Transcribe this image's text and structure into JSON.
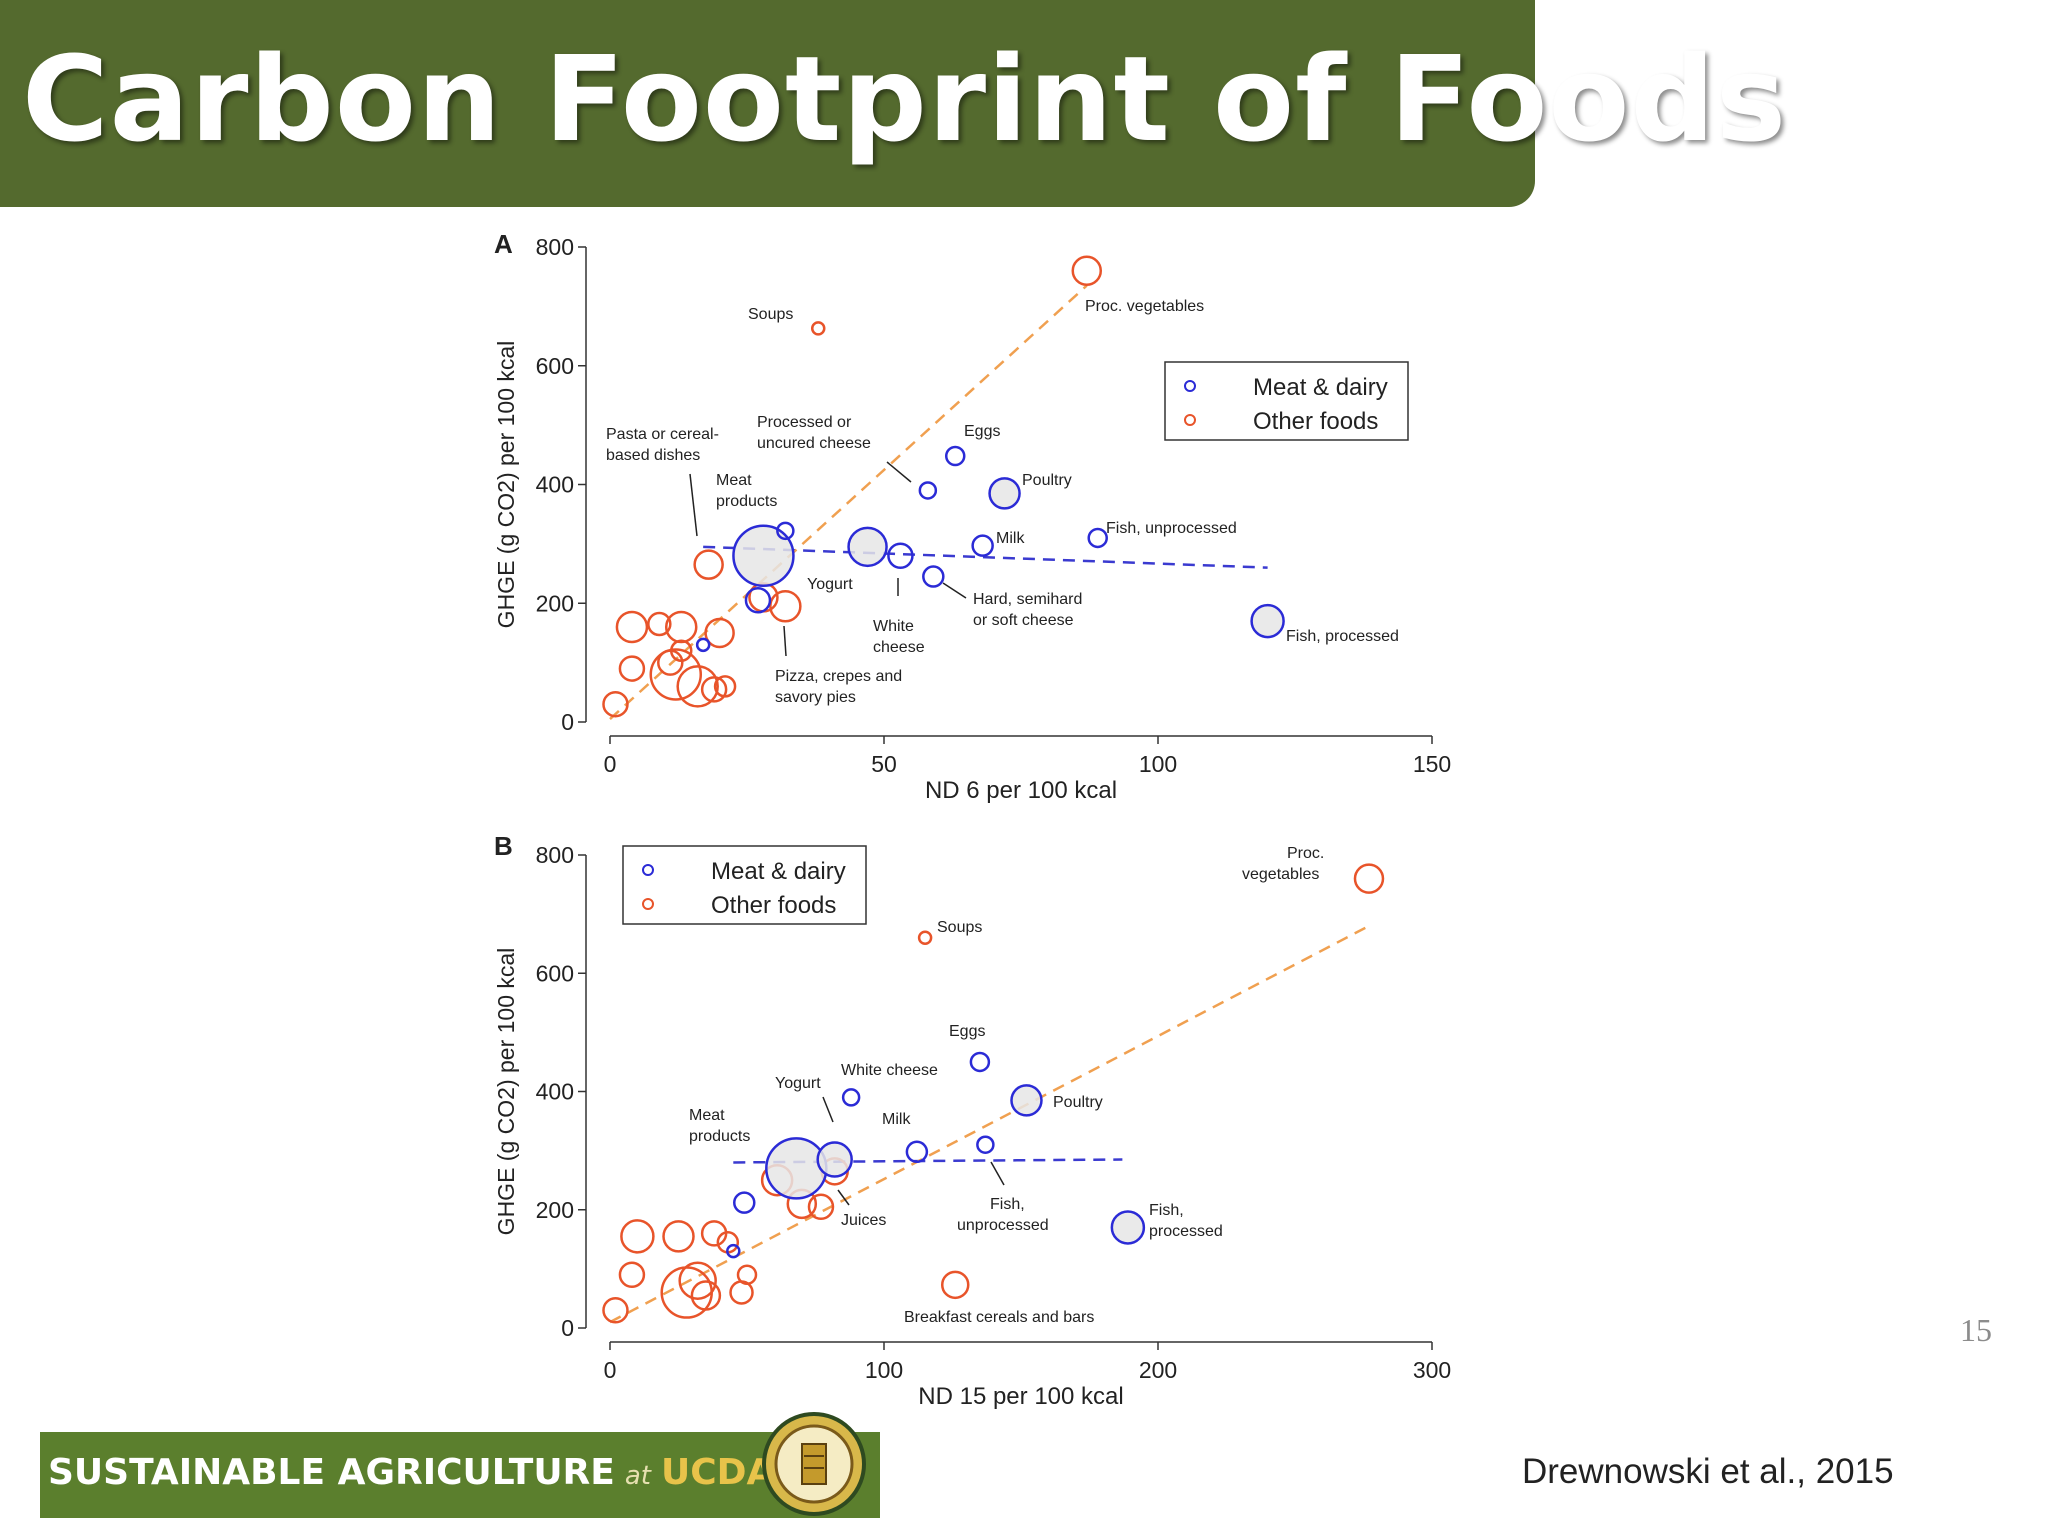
{
  "slide": {
    "title": "Carbon Footprint of Foods",
    "page_number": "15",
    "citation": "Drewnowski et al., 2015",
    "logo": {
      "text_main": "SUSTAINABLE  AGRICULTURE",
      "text_at": "at",
      "text_org": "UCDAVIS"
    }
  },
  "colors": {
    "title_bg": "#546a2e",
    "meat_dairy": "#2b2bd6",
    "other_foods": "#e8542a",
    "fit_meat": "#3a3ad0",
    "fit_other": "#f0a050",
    "bubble_fill": "#e6e6e6"
  },
  "chart_data": [
    {
      "type": "scatter",
      "panel": "A",
      "xlabel": "ND 6 per 100 kcal",
      "ylabel": "GHGE (g CO2) per 100 kcal",
      "xlim": [
        0,
        150
      ],
      "ylim": [
        0,
        800
      ],
      "xticks": [
        0,
        50,
        100,
        150
      ],
      "yticks": [
        0,
        200,
        400,
        600,
        800
      ],
      "legend": {
        "position": "top-right",
        "entries": [
          "Meat & dairy",
          "Other foods"
        ]
      },
      "series": [
        {
          "name": "Meat & dairy",
          "points": [
            {
              "label": "Meat products",
              "x": 28,
              "y": 280,
              "r": 30
            },
            {
              "label": "Yogurt",
              "x": 47,
              "y": 295,
              "r": 19
            },
            {
              "label": "White cheese",
              "x": 53,
              "y": 280,
              "r": 12
            },
            {
              "label": "Hard, semihard or soft cheese",
              "x": 59,
              "y": 245,
              "r": 10
            },
            {
              "label": "Processed or uncured cheese",
              "x": 58,
              "y": 390,
              "r": 8
            },
            {
              "label": "Eggs",
              "x": 63,
              "y": 448,
              "r": 9
            },
            {
              "label": "Poultry",
              "x": 72,
              "y": 385,
              "r": 15
            },
            {
              "label": "Milk",
              "x": 68,
              "y": 297,
              "r": 10
            },
            {
              "label": "Fish, unprocessed",
              "x": 89,
              "y": 310,
              "r": 9
            },
            {
              "label": "Fish, processed",
              "x": 120,
              "y": 170,
              "r": 16
            },
            {
              "label": "",
              "x": 27,
              "y": 205,
              "r": 12
            },
            {
              "label": "",
              "x": 32,
              "y": 322,
              "r": 8
            },
            {
              "label": "",
              "x": 17,
              "y": 130,
              "r": 6
            }
          ]
        },
        {
          "name": "Other foods",
          "points": [
            {
              "label": "Soups",
              "x": 38,
              "y": 663,
              "r": 6
            },
            {
              "label": "Proc. vegetables",
              "x": 87,
              "y": 760,
              "r": 14
            },
            {
              "label": "Pasta or cereal-based dishes",
              "x": 18,
              "y": 265,
              "r": 14
            },
            {
              "label": "Pizza, crepes and savory pies",
              "x": 32,
              "y": 195,
              "r": 15
            },
            {
              "label": "",
              "x": 28,
              "y": 210,
              "r": 14
            },
            {
              "label": "",
              "x": 4,
              "y": 160,
              "r": 15
            },
            {
              "label": "",
              "x": 9,
              "y": 165,
              "r": 11
            },
            {
              "label": "",
              "x": 13,
              "y": 160,
              "r": 15
            },
            {
              "label": "",
              "x": 20,
              "y": 150,
              "r": 14
            },
            {
              "label": "",
              "x": 4,
              "y": 90,
              "r": 12
            },
            {
              "label": "",
              "x": 12,
              "y": 80,
              "r": 25
            },
            {
              "label": "",
              "x": 16,
              "y": 60,
              "r": 20
            },
            {
              "label": "",
              "x": 11,
              "y": 100,
              "r": 12
            },
            {
              "label": "",
              "x": 19,
              "y": 55,
              "r": 12
            },
            {
              "label": "",
              "x": 21,
              "y": 60,
              "r": 10
            },
            {
              "label": "",
              "x": 1,
              "y": 30,
              "r": 12
            },
            {
              "label": "",
              "x": 13,
              "y": 120,
              "r": 10
            }
          ]
        }
      ],
      "fits": [
        {
          "name": "Meat & dairy",
          "x": [
            17,
            120
          ],
          "y": [
            295,
            260
          ]
        },
        {
          "name": "Other foods",
          "x": [
            0,
            87
          ],
          "y": [
            5,
            735
          ]
        }
      ]
    },
    {
      "type": "scatter",
      "panel": "B",
      "xlabel": "ND 15 per 100 kcal",
      "ylabel": "GHGE (g CO2) per 100 kcal",
      "xlim": [
        0,
        300
      ],
      "ylim": [
        0,
        800
      ],
      "xticks": [
        0,
        100,
        200,
        300
      ],
      "yticks": [
        0,
        200,
        400,
        600,
        800
      ],
      "legend": {
        "position": "top-left",
        "entries": [
          "Meat & dairy",
          "Other foods"
        ]
      },
      "series": [
        {
          "name": "Meat & dairy",
          "points": [
            {
              "label": "Meat products",
              "x": 68,
              "y": 270,
              "r": 30
            },
            {
              "label": "Yogurt",
              "x": 82,
              "y": 285,
              "r": 17
            },
            {
              "label": "White cheese",
              "x": 88,
              "y": 390,
              "r": 8
            },
            {
              "label": "Milk",
              "x": 112,
              "y": 298,
              "r": 10
            },
            {
              "label": "Eggs",
              "x": 135,
              "y": 450,
              "r": 9
            },
            {
              "label": "Poultry",
              "x": 152,
              "y": 385,
              "r": 15
            },
            {
              "label": "Fish, unprocessed",
              "x": 137,
              "y": 310,
              "r": 8
            },
            {
              "label": "Fish, processed",
              "x": 189,
              "y": 170,
              "r": 16
            },
            {
              "label": "",
              "x": 49,
              "y": 212,
              "r": 10
            },
            {
              "label": "",
              "x": 45,
              "y": 130,
              "r": 6
            }
          ]
        },
        {
          "name": "Other foods",
          "points": [
            {
              "label": "Soups",
              "x": 115,
              "y": 660,
              "r": 6
            },
            {
              "label": "Proc. vegetables",
              "x": 277,
              "y": 760,
              "r": 14
            },
            {
              "label": "Juices",
              "x": 82,
              "y": 265,
              "r": 13
            },
            {
              "label": "Breakfast cereals and bars",
              "x": 126,
              "y": 73,
              "r": 13
            },
            {
              "label": "",
              "x": 61,
              "y": 250,
              "r": 15
            },
            {
              "label": "",
              "x": 70,
              "y": 210,
              "r": 14
            },
            {
              "label": "",
              "x": 77,
              "y": 205,
              "r": 12
            },
            {
              "label": "",
              "x": 10,
              "y": 155,
              "r": 16
            },
            {
              "label": "",
              "x": 25,
              "y": 155,
              "r": 15
            },
            {
              "label": "",
              "x": 38,
              "y": 160,
              "r": 12
            },
            {
              "label": "",
              "x": 43,
              "y": 145,
              "r": 10
            },
            {
              "label": "",
              "x": 8,
              "y": 90,
              "r": 12
            },
            {
              "label": "",
              "x": 28,
              "y": 60,
              "r": 25
            },
            {
              "label": "",
              "x": 32,
              "y": 80,
              "r": 18
            },
            {
              "label": "",
              "x": 35,
              "y": 55,
              "r": 14
            },
            {
              "label": "",
              "x": 48,
              "y": 60,
              "r": 11
            },
            {
              "label": "",
              "x": 50,
              "y": 90,
              "r": 9
            },
            {
              "label": "",
              "x": 2,
              "y": 30,
              "r": 12
            }
          ]
        }
      ],
      "fits": [
        {
          "name": "Meat & dairy",
          "x": [
            45,
            187
          ],
          "y": [
            280,
            285
          ]
        },
        {
          "name": "Other foods",
          "x": [
            0,
            277
          ],
          "y": [
            10,
            680
          ]
        }
      ]
    }
  ],
  "annotations": {
    "A": {
      "panel_label": "A",
      "soups": "Soups",
      "proc_vegetables": "Proc. vegetables",
      "pasta_1": "Pasta or cereal-",
      "pasta_2": "based dishes",
      "meat_1": "Meat",
      "meat_2": "products",
      "processed_1": "Processed or",
      "processed_2": "uncured cheese",
      "eggs": "Eggs",
      "poultry": "Poultry",
      "milk": "Milk",
      "fish_unproc": "Fish, unprocessed",
      "yogurt": "Yogurt",
      "hard_1": "Hard, semihard",
      "hard_2": "or soft cheese",
      "white_1": "White",
      "white_2": "cheese",
      "pizza_1": "Pizza, crepes and",
      "pizza_2": "savory pies",
      "fish_proc": "Fish, processed"
    },
    "B": {
      "panel_label": "B",
      "soups": "Soups",
      "proc_veg_1": "Proc.",
      "proc_veg_2": "vegetables",
      "eggs": "Eggs",
      "white_cheese": "White cheese",
      "yogurt": "Yogurt",
      "poultry": "Poultry",
      "meat_1": "Meat",
      "meat_2": "products",
      "milk": "Milk",
      "fish_unproc_1": "Fish,",
      "fish_unproc_2": "unprocessed",
      "juices": "Juices",
      "fish_proc_1": "Fish,",
      "fish_proc_2": "processed",
      "breakfast": "Breakfast cereals and bars"
    }
  }
}
